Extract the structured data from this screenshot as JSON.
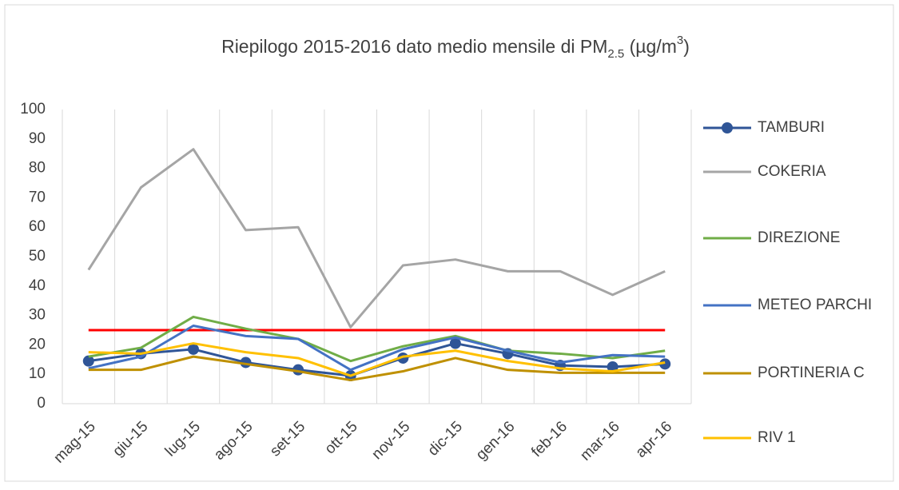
{
  "chart_data": {
    "type": "line",
    "title": [
      "Riepilogo 2015-2016 dato medio mensile di PM",
      "2.5",
      " (µg/m",
      "3",
      ")"
    ],
    "categories": [
      "mag-15",
      "giu-15",
      "lug-15",
      "ago-15",
      "set-15",
      "ott-15",
      "nov-15",
      "dic-15",
      "gen-16",
      "feb-16",
      "mar-16",
      "apr-16"
    ],
    "series": [
      {
        "name": "TAMBURI",
        "color": "#2f5597",
        "marker": true,
        "values": [
          14.5,
          17,
          18.5,
          14,
          11.5,
          9.5,
          15.5,
          20.5,
          17,
          13,
          12.5,
          13.5
        ]
      },
      {
        "name": "COKERIA",
        "color": "#a5a5a5",
        "values": [
          45.5,
          73.5,
          86.5,
          59,
          60,
          26,
          47,
          49,
          45,
          45,
          37,
          45
        ]
      },
      {
        "name": "DIREZIONE",
        "color": "#70ad47",
        "values": [
          16,
          19,
          29.5,
          25.5,
          22,
          14.5,
          19.5,
          23,
          18,
          17,
          15.5,
          18
        ]
      },
      {
        "name": "METEO PARCHI",
        "color": "#4472c4",
        "values": [
          12,
          16,
          26.5,
          23,
          22,
          11.5,
          18.5,
          22.5,
          18,
          14,
          16.5,
          16
        ]
      },
      {
        "name": "PORTINERIA C",
        "color": "#bf9000",
        "values": [
          11.5,
          11.5,
          16,
          13.5,
          11,
          8,
          11,
          15.5,
          11.5,
          10.5,
          10.5,
          10.5
        ]
      },
      {
        "name": "RIV 1",
        "color": "#ffc000",
        "values": [
          17.5,
          17,
          20.5,
          17.5,
          15.5,
          9.5,
          16,
          18,
          14.5,
          12,
          11,
          14
        ]
      }
    ],
    "reference_line": {
      "value": 25,
      "color": "#ff0000"
    },
    "ylim": [
      0,
      100
    ],
    "yticks": [
      0,
      10,
      20,
      30,
      40,
      50,
      60,
      70,
      80,
      90,
      100
    ],
    "grid": true,
    "legend": "right"
  }
}
